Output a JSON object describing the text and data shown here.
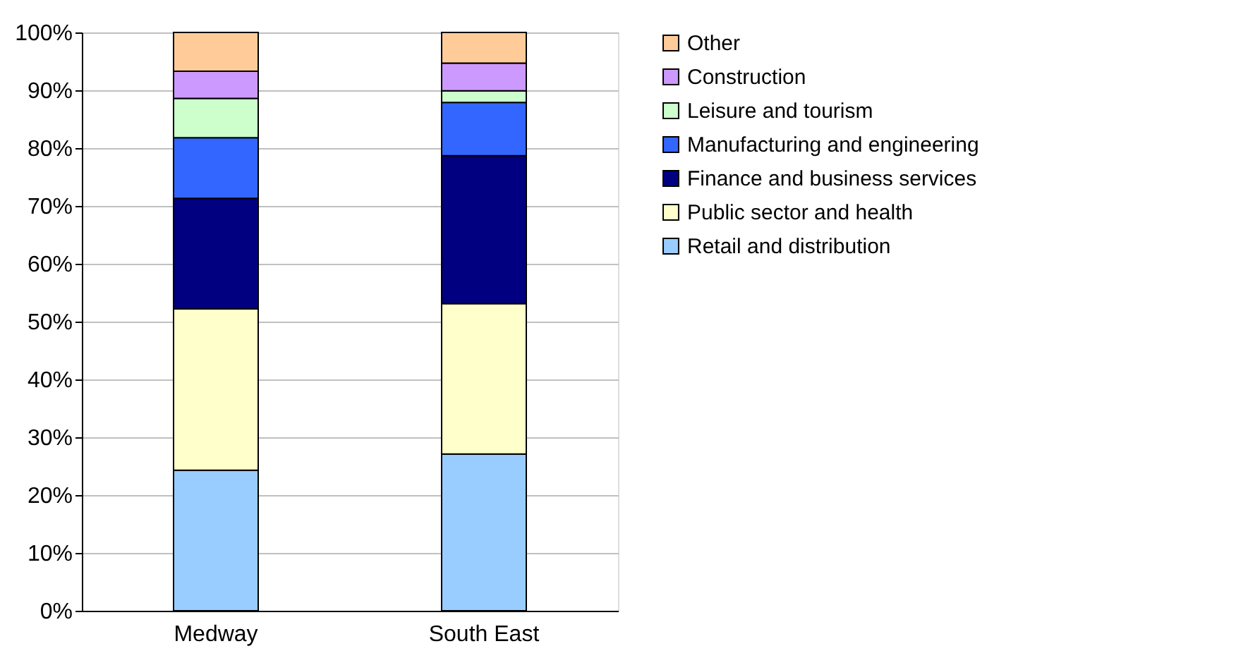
{
  "chart_data": {
    "type": "bar",
    "stacked": true,
    "categories": [
      "Medway",
      "South East"
    ],
    "series": [
      {
        "name": "Retail and distribution",
        "color": "#99ccff",
        "values": [
          24.3,
          27.1
        ]
      },
      {
        "name": "Public sector and health",
        "color": "#ffffcc",
        "values": [
          27.9,
          26.0
        ]
      },
      {
        "name": "Finance and business services",
        "color": "#000080",
        "values": [
          19.1,
          25.6
        ]
      },
      {
        "name": "Manufacturing and engineering",
        "color": "#3366ff",
        "values": [
          10.5,
          9.2
        ]
      },
      {
        "name": "Leisure and tourism",
        "color": "#ccffcc",
        "values": [
          6.8,
          2.0
        ]
      },
      {
        "name": "Construction",
        "color": "#cc99ff",
        "values": [
          4.7,
          4.8
        ]
      },
      {
        "name": "Other",
        "color": "#ffcc99",
        "values": [
          6.7,
          5.3
        ]
      }
    ],
    "ylim": [
      0,
      100
    ],
    "yticks": [
      {
        "value": 0,
        "label": "0%"
      },
      {
        "value": 10,
        "label": "10%"
      },
      {
        "value": 20,
        "label": "20%"
      },
      {
        "value": 30,
        "label": "30%"
      },
      {
        "value": 40,
        "label": "40%"
      },
      {
        "value": 50,
        "label": "50%"
      },
      {
        "value": 60,
        "label": "60%"
      },
      {
        "value": 70,
        "label": "70%"
      },
      {
        "value": 80,
        "label": "80%"
      },
      {
        "value": 90,
        "label": "90%"
      },
      {
        "value": 100,
        "label": "100%"
      }
    ],
    "grid": "y",
    "legend": "right"
  }
}
